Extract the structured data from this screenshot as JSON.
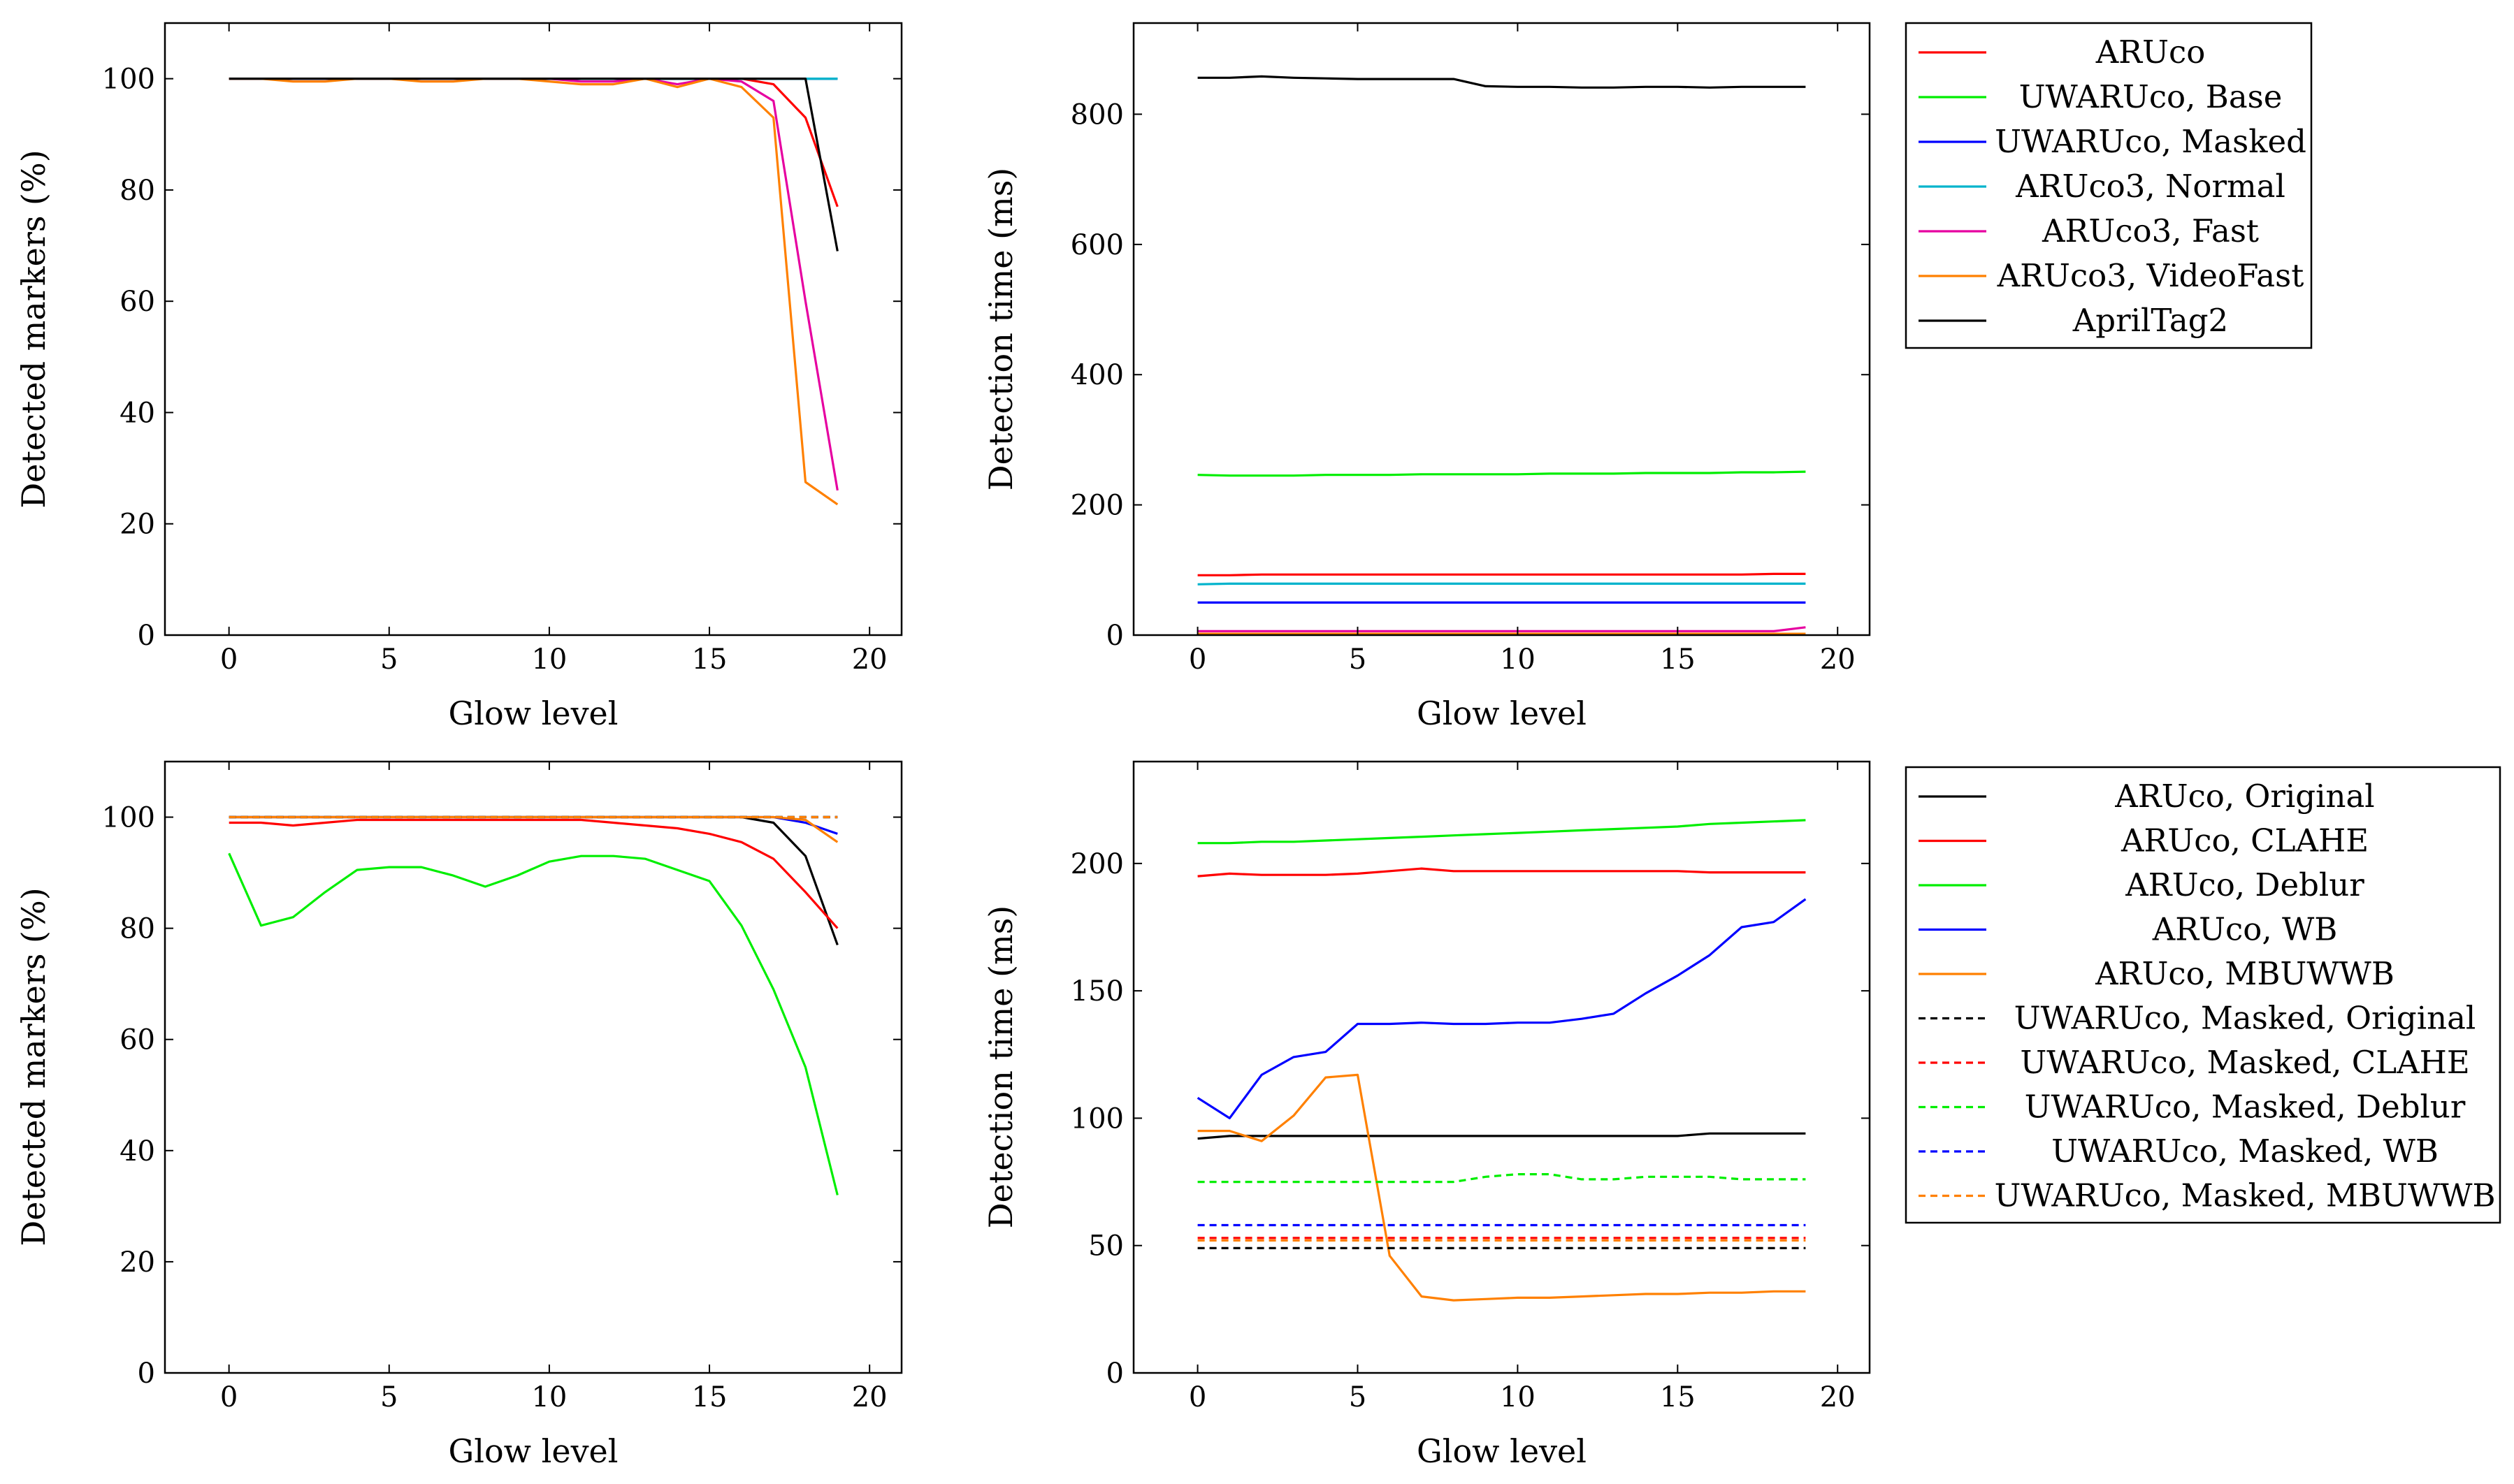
{
  "chart_data": [
    {
      "type": "line",
      "title": "",
      "xlabel": "Glow level",
      "ylabel": "Detected markers (%)",
      "xlim": [
        -2,
        21
      ],
      "ylim": [
        0,
        110
      ],
      "xticks": [
        0,
        5,
        10,
        15,
        20
      ],
      "yticks": [
        0,
        20,
        40,
        60,
        80,
        100
      ],
      "grid": false,
      "legend": "shared-right",
      "x": [
        0,
        1,
        2,
        3,
        4,
        5,
        6,
        7,
        8,
        9,
        10,
        11,
        12,
        13,
        14,
        15,
        16,
        17,
        18,
        19
      ],
      "series": [
        {
          "name": "ARUco",
          "color": "#ff0000",
          "dash": "",
          "values": [
            100,
            100,
            100,
            100,
            100,
            100,
            100,
            100,
            100,
            100,
            100,
            100,
            100,
            100,
            100,
            100,
            100,
            99,
            93,
            77
          ]
        },
        {
          "name": "UWARUco, Base",
          "color": "#00ee00",
          "dash": "",
          "values": [
            100,
            100,
            100,
            100,
            100,
            100,
            100,
            100,
            100,
            100,
            100,
            100,
            100,
            100,
            100,
            100,
            100,
            100,
            100,
            100
          ]
        },
        {
          "name": "UWARUco, Masked",
          "color": "#0000ff",
          "dash": "",
          "values": [
            100,
            100,
            100,
            100,
            100,
            100,
            100,
            100,
            100,
            100,
            100,
            100,
            100,
            100,
            100,
            100,
            100,
            100,
            100,
            100
          ]
        },
        {
          "name": "ARUco3, Normal",
          "color": "#00b3cc",
          "dash": "",
          "values": [
            100,
            100,
            100,
            100,
            100,
            100,
            100,
            100,
            100,
            100,
            100,
            100,
            100,
            100,
            100,
            100,
            100,
            100,
            100,
            100
          ]
        },
        {
          "name": "ARUco3, Fast",
          "color": "#e600a0",
          "dash": "",
          "values": [
            100,
            100,
            100,
            100,
            100,
            100,
            100,
            100,
            100,
            100,
            100,
            99.5,
            99.5,
            100,
            99,
            100,
            99.5,
            96,
            60,
            26
          ]
        },
        {
          "name": "ARUco3, VideoFast",
          "color": "#ff8000",
          "dash": "",
          "values": [
            100,
            100,
            99.5,
            99.5,
            100,
            100,
            99.5,
            99.5,
            100,
            100,
            99.5,
            99,
            99,
            100,
            98.5,
            100,
            98.5,
            93,
            27.5,
            23.5
          ]
        },
        {
          "name": "AprilTag2",
          "color": "#000000",
          "dash": "",
          "values": [
            100,
            100,
            100,
            100,
            100,
            100,
            100,
            100,
            100,
            100,
            100,
            100,
            100,
            100,
            100,
            100,
            100,
            100,
            100,
            69
          ]
        }
      ]
    },
    {
      "type": "line",
      "title": "",
      "xlabel": "Glow level",
      "ylabel": "Detection time (ms)",
      "xlim": [
        -2,
        21
      ],
      "ylim": [
        0,
        940
      ],
      "xticks": [
        0,
        5,
        10,
        15,
        20
      ],
      "yticks": [
        0,
        200,
        400,
        600,
        800
      ],
      "grid": false,
      "legend": "top-right-outside",
      "x": [
        0,
        1,
        2,
        3,
        4,
        5,
        6,
        7,
        8,
        9,
        10,
        11,
        12,
        13,
        14,
        15,
        16,
        17,
        18,
        19
      ],
      "series": [
        {
          "name": "ARUco",
          "color": "#ff0000",
          "dash": "",
          "values": [
            92,
            92,
            93,
            93,
            93,
            93,
            93,
            93,
            93,
            93,
            93,
            93,
            93,
            93,
            93,
            93,
            93,
            93,
            94,
            94
          ]
        },
        {
          "name": "UWARUco, Base",
          "color": "#00ee00",
          "dash": "",
          "values": [
            246,
            245,
            245,
            245,
            246,
            246,
            246,
            247,
            247,
            247,
            247,
            248,
            248,
            248,
            249,
            249,
            249,
            250,
            250,
            251
          ]
        },
        {
          "name": "UWARUco, Masked",
          "color": "#0000ff",
          "dash": "",
          "values": [
            50,
            50,
            50,
            50,
            50,
            50,
            50,
            50,
            50,
            50,
            50,
            50,
            50,
            50,
            50,
            50,
            50,
            50,
            50,
            50
          ]
        },
        {
          "name": "ARUco3, Normal",
          "color": "#00b3cc",
          "dash": "",
          "values": [
            78,
            79,
            79,
            79,
            79,
            79,
            79,
            79,
            79,
            79,
            79,
            79,
            79,
            79,
            79,
            79,
            79,
            79,
            79,
            79
          ]
        },
        {
          "name": "ARUco3, Fast",
          "color": "#e600a0",
          "dash": "",
          "values": [
            6,
            6,
            6,
            6,
            6,
            6,
            6,
            6,
            6,
            6,
            6,
            6,
            6,
            6,
            6,
            6,
            6,
            6,
            6,
            12
          ]
        },
        {
          "name": "ARUco3, VideoFast",
          "color": "#ff8000",
          "dash": "",
          "values": [
            2,
            2,
            2,
            2,
            2,
            2,
            2,
            2,
            2,
            2,
            2,
            2,
            2,
            2,
            2,
            2,
            2,
            2,
            2,
            2
          ]
        },
        {
          "name": "AprilTag2",
          "color": "#000000",
          "dash": "",
          "values": [
            856,
            856,
            858,
            856,
            855,
            854,
            854,
            854,
            854,
            843,
            842,
            842,
            841,
            841,
            842,
            842,
            841,
            842,
            842,
            842
          ]
        }
      ]
    },
    {
      "type": "line",
      "title": "",
      "xlabel": "Glow level",
      "ylabel": "Detected markers (%)",
      "xlim": [
        -2,
        21
      ],
      "ylim": [
        0,
        110
      ],
      "xticks": [
        0,
        5,
        10,
        15,
        20
      ],
      "yticks": [
        0,
        20,
        40,
        60,
        80,
        100
      ],
      "grid": false,
      "legend": "shared-right",
      "x": [
        0,
        1,
        2,
        3,
        4,
        5,
        6,
        7,
        8,
        9,
        10,
        11,
        12,
        13,
        14,
        15,
        16,
        17,
        18,
        19
      ],
      "series": [
        {
          "name": "ARUco, Original",
          "color": "#000000",
          "dash": "",
          "values": [
            100,
            100,
            100,
            100,
            100,
            100,
            100,
            100,
            100,
            100,
            100,
            100,
            100,
            100,
            100,
            100,
            100,
            99,
            93,
            77
          ]
        },
        {
          "name": "ARUco, CLAHE",
          "color": "#ff0000",
          "dash": "",
          "values": [
            99,
            99,
            98.5,
            99,
            99.5,
            99.5,
            99.5,
            99.5,
            99.5,
            99.5,
            99.5,
            99.5,
            99,
            98.5,
            98,
            97,
            95.5,
            92.5,
            86.5,
            80
          ]
        },
        {
          "name": "ARUco, Deblur",
          "color": "#00ee00",
          "dash": "",
          "values": [
            93.5,
            80.5,
            82,
            86.5,
            90.5,
            91,
            91,
            89.5,
            87.5,
            89.5,
            92,
            93,
            93,
            92.5,
            90.5,
            88.5,
            80.5,
            69,
            55,
            32
          ]
        },
        {
          "name": "ARUco, WB",
          "color": "#0000ff",
          "dash": "",
          "values": [
            100,
            100,
            100,
            100,
            100,
            100,
            100,
            100,
            100,
            100,
            100,
            100,
            100,
            100,
            100,
            100,
            100,
            100,
            99,
            97
          ]
        },
        {
          "name": "ARUco, MBUWWB",
          "color": "#ff8000",
          "dash": "",
          "values": [
            100,
            100,
            100,
            100,
            100,
            100,
            100,
            100,
            100,
            100,
            100,
            100,
            100,
            100,
            100,
            100,
            100,
            100,
            99.5,
            95.5
          ]
        },
        {
          "name": "UWARUco, Masked, Original",
          "color": "#000000",
          "dash": "10,7",
          "values": [
            100,
            100,
            100,
            100,
            100,
            100,
            100,
            100,
            100,
            100,
            100,
            100,
            100,
            100,
            100,
            100,
            100,
            100,
            100,
            100
          ]
        },
        {
          "name": "UWARUco, Masked, CLAHE",
          "color": "#ff0000",
          "dash": "10,7",
          "values": [
            100,
            100,
            100,
            100,
            100,
            100,
            100,
            100,
            100,
            100,
            100,
            100,
            100,
            100,
            100,
            100,
            100,
            100,
            100,
            100
          ]
        },
        {
          "name": "UWARUco, Masked, Deblur",
          "color": "#00ee00",
          "dash": "10,7",
          "values": [
            100,
            100,
            100,
            100,
            100,
            100,
            100,
            100,
            100,
            100,
            100,
            100,
            100,
            100,
            100,
            100,
            100,
            100,
            100,
            100
          ]
        },
        {
          "name": "UWARUco, Masked, WB",
          "color": "#0000ff",
          "dash": "10,7",
          "values": [
            100,
            100,
            100,
            100,
            100,
            100,
            100,
            100,
            100,
            100,
            100,
            100,
            100,
            100,
            100,
            100,
            100,
            100,
            100,
            100
          ]
        },
        {
          "name": "UWARUco, Masked, MBUWWB",
          "color": "#ff8000",
          "dash": "10,7",
          "values": [
            100,
            100,
            100,
            100,
            100,
            100,
            100,
            100,
            100,
            100,
            100,
            100,
            100,
            100,
            100,
            100,
            100,
            100,
            100,
            100
          ]
        }
      ]
    },
    {
      "type": "line",
      "title": "",
      "xlabel": "Glow level",
      "ylabel": "Detection time (ms)",
      "xlim": [
        -2,
        21
      ],
      "ylim": [
        0,
        240
      ],
      "xticks": [
        0,
        5,
        10,
        15,
        20
      ],
      "yticks": [
        0,
        50,
        100,
        150,
        200
      ],
      "grid": false,
      "legend": "top-right-outside",
      "x": [
        0,
        1,
        2,
        3,
        4,
        5,
        6,
        7,
        8,
        9,
        10,
        11,
        12,
        13,
        14,
        15,
        16,
        17,
        18,
        19
      ],
      "series": [
        {
          "name": "ARUco, Original",
          "color": "#000000",
          "dash": "",
          "values": [
            92,
            93,
            93,
            93,
            93,
            93,
            93,
            93,
            93,
            93,
            93,
            93,
            93,
            93,
            93,
            93,
            94,
            94,
            94,
            94
          ]
        },
        {
          "name": "ARUco, CLAHE",
          "color": "#ff0000",
          "dash": "",
          "values": [
            195,
            196,
            195.5,
            195.5,
            195.5,
            196,
            197,
            198,
            197,
            197,
            197,
            197,
            197,
            197,
            197,
            197,
            196.5,
            196.5,
            196.5,
            196.5
          ]
        },
        {
          "name": "ARUco, Deblur",
          "color": "#00ee00",
          "dash": "",
          "values": [
            208,
            208,
            208.5,
            208.5,
            209,
            209.5,
            210,
            210.5,
            211,
            211.5,
            212,
            212.5,
            213,
            213.5,
            214,
            214.5,
            215.5,
            216,
            216.5,
            217
          ]
        },
        {
          "name": "ARUco, WB",
          "color": "#0000ff",
          "dash": "",
          "values": [
            108,
            100,
            117,
            124,
            126,
            137,
            137,
            137.5,
            137,
            137,
            137.5,
            137.5,
            139,
            141,
            149,
            156,
            164,
            175,
            177,
            186
          ]
        },
        {
          "name": "ARUco, MBUWWB",
          "color": "#ff8000",
          "dash": "",
          "values": [
            95,
            95,
            91,
            101,
            116,
            117,
            46,
            30,
            28.5,
            29,
            29.5,
            29.5,
            30,
            30.5,
            31,
            31,
            31.5,
            31.5,
            32,
            32
          ]
        },
        {
          "name": "UWARUco, Masked, Original",
          "color": "#000000",
          "dash": "10,7",
          "values": [
            49,
            49,
            49,
            49,
            49,
            49,
            49,
            49,
            49,
            49,
            49,
            49,
            49,
            49,
            49,
            49,
            49,
            49,
            49,
            49
          ]
        },
        {
          "name": "UWARUco, Masked, CLAHE",
          "color": "#ff0000",
          "dash": "10,7",
          "values": [
            53,
            53,
            53,
            53,
            53,
            53,
            53,
            53,
            53,
            53,
            53,
            53,
            53,
            53,
            53,
            53,
            53,
            53,
            53,
            53
          ]
        },
        {
          "name": "UWARUco, Masked, Deblur",
          "color": "#00ee00",
          "dash": "10,7",
          "values": [
            75,
            75,
            75,
            75,
            75,
            75,
            75,
            75,
            75,
            77,
            78,
            78,
            76,
            76,
            77,
            77,
            77,
            76,
            76,
            76
          ]
        },
        {
          "name": "UWARUco, Masked, WB",
          "color": "#0000ff",
          "dash": "10,7",
          "values": [
            58,
            58,
            58,
            58,
            58,
            58,
            58,
            58,
            58,
            58,
            58,
            58,
            58,
            58,
            58,
            58,
            58,
            58,
            58,
            58
          ]
        },
        {
          "name": "UWARUco, Masked, MBUWWB",
          "color": "#ff8000",
          "dash": "10,7",
          "values": [
            52,
            52,
            52,
            52,
            52,
            52,
            52,
            52,
            52,
            52,
            52,
            52,
            52,
            52,
            52,
            52,
            52,
            52,
            52,
            52
          ]
        }
      ]
    }
  ]
}
